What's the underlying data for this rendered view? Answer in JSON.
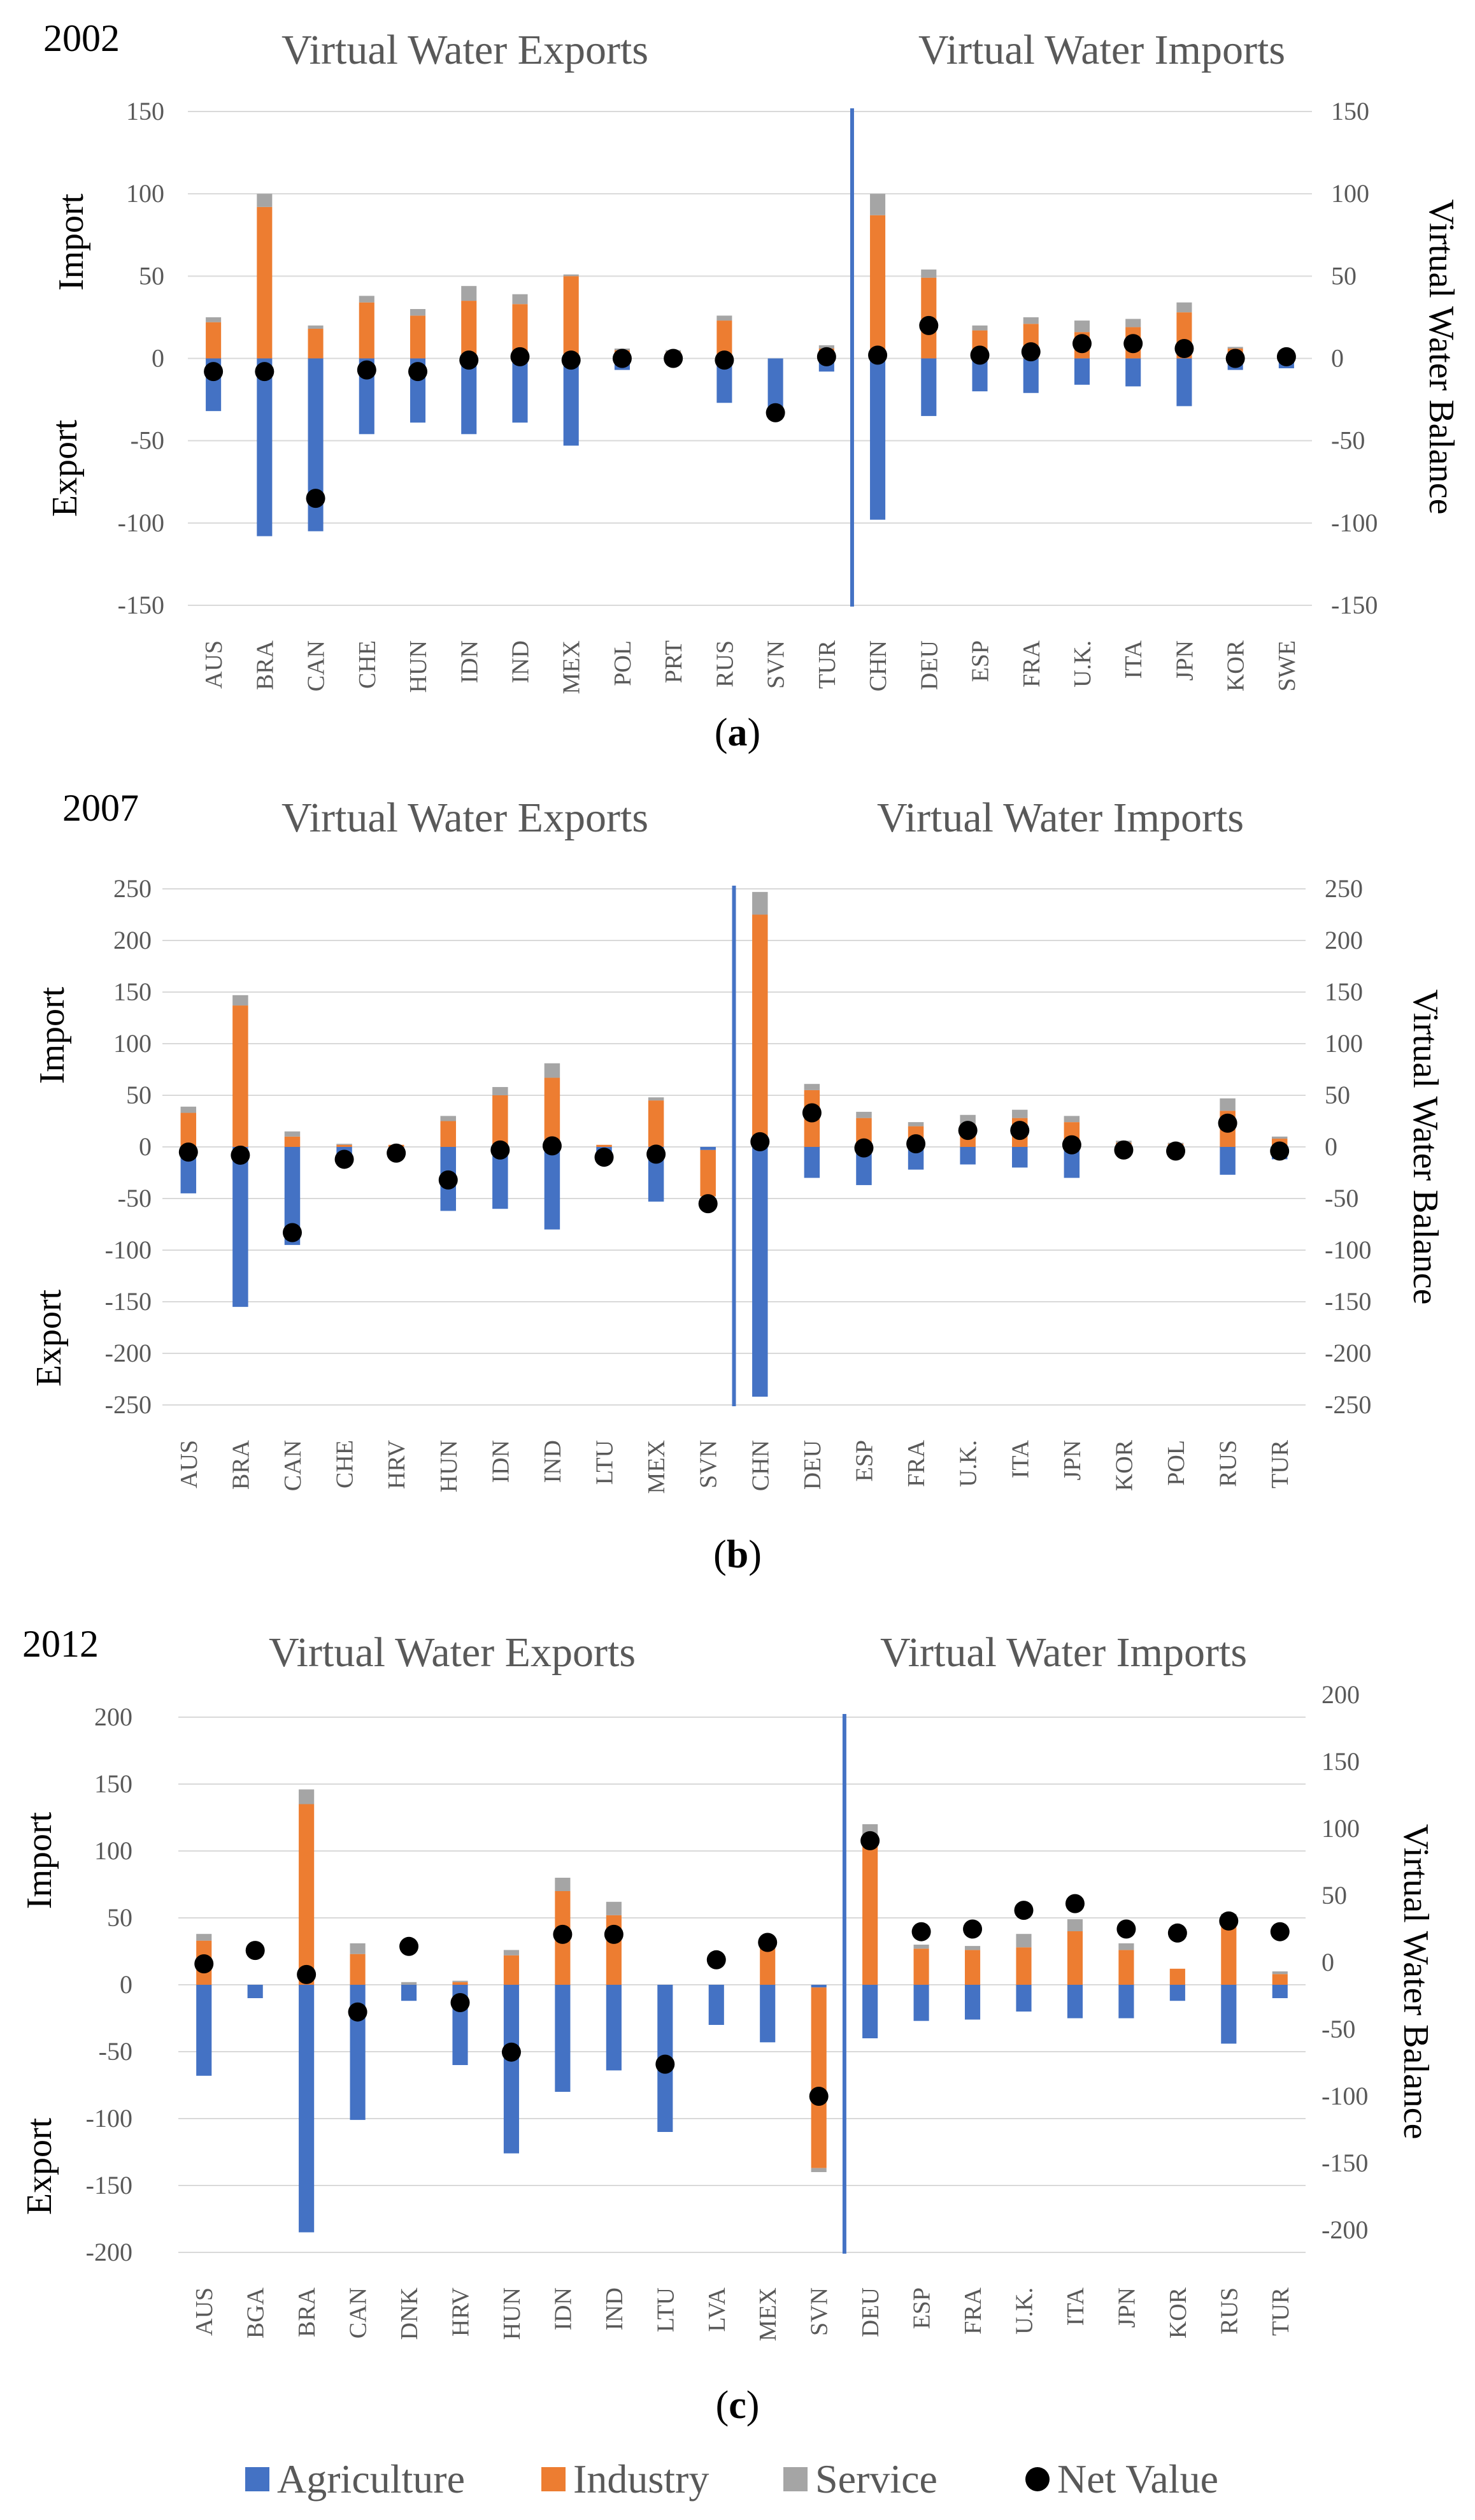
{
  "legend": {
    "agriculture": "Agriculture",
    "industry": "Industry",
    "service": "Service",
    "net": "Net Value"
  },
  "colors": {
    "agriculture": "#4472C4",
    "industry": "#ED7D31",
    "service": "#A5A5A5",
    "net": "#000000",
    "divider": "#4472C4",
    "grid": "#D9D9D9"
  },
  "chart_data": [
    {
      "type": "bar",
      "stacked": true,
      "year": "2002",
      "panel_label": "a",
      "title_exports": "Virtual Water Exports",
      "title_imports": "Virtual Water Imports",
      "ylabel_import": "Import",
      "ylabel_export": "Export",
      "y2label": "Virtual Water Balance",
      "ylim": [
        -150,
        150
      ],
      "yticks": [
        150,
        100,
        50,
        0,
        -50,
        -100,
        -150
      ],
      "y2lim": [
        -150,
        150
      ],
      "y2ticks": [
        150,
        100,
        50,
        0,
        -50,
        -100,
        -150
      ],
      "split_after": 13,
      "categories": [
        "AUS",
        "BRA",
        "CAN",
        "CHE",
        "HUN",
        "IDN",
        "IND",
        "MEX",
        "POL",
        "PRT",
        "RUS",
        "SVN",
        "TUR",
        "CHN",
        "DEU",
        "ESP",
        "FRA",
        "U.K.",
        "ITA",
        "JPN",
        "KOR",
        "SWE"
      ],
      "series": [
        {
          "name": "Agriculture",
          "values": [
            -32,
            -108,
            -105,
            -46,
            -39,
            -46,
            -39,
            -53,
            -7,
            0,
            -27,
            -30,
            -8,
            -98,
            -35,
            -20,
            -21,
            -16,
            -17,
            -29,
            -7,
            -6
          ]
        },
        {
          "name": "Industry",
          "values": [
            22,
            92,
            18,
            34,
            26,
            35,
            33,
            50,
            5,
            4,
            23,
            -4,
            6,
            87,
            49,
            17,
            21,
            16,
            19,
            28,
            6,
            4
          ]
        },
        {
          "name": "Service",
          "values": [
            3,
            8,
            2,
            4,
            4,
            9,
            6,
            1,
            1,
            1,
            3,
            0,
            2,
            13,
            5,
            3,
            4,
            7,
            5,
            6,
            1,
            1
          ]
        }
      ],
      "net_values": [
        -8,
        -8,
        -85,
        -7,
        -8,
        -1,
        1,
        -1,
        0,
        0,
        -1,
        -33,
        1,
        2,
        20,
        2,
        4,
        9,
        9,
        6,
        0,
        1
      ]
    },
    {
      "type": "bar",
      "stacked": true,
      "year": "2007",
      "panel_label": "b",
      "title_exports": "Virtual Water Exports",
      "title_imports": "Virtual Water Imports",
      "ylabel_import": "Import",
      "ylabel_export": "Export",
      "y2label": "Virtual Water Balance",
      "ylim": [
        -250,
        250
      ],
      "yticks": [
        250,
        200,
        150,
        100,
        50,
        0,
        -50,
        -100,
        -150,
        -200,
        -250
      ],
      "y2lim": [
        -250,
        250
      ],
      "y2ticks": [
        250,
        200,
        150,
        100,
        50,
        0,
        -50,
        -100,
        -150,
        -200,
        -250
      ],
      "split_after": 11,
      "categories": [
        "AUS",
        "BRA",
        "CAN",
        "CHE",
        "HRV",
        "HUN",
        "IDN",
        "IND",
        "LTU",
        "MEX",
        "SVN",
        "CHN",
        "DEU",
        "ESP",
        "FRA",
        "U.K.",
        "ITA",
        "JPN",
        "KOR",
        "POL",
        "RUS",
        "TUR"
      ],
      "series": [
        {
          "name": "Agriculture",
          "values": [
            -45,
            -155,
            -95,
            -10,
            -3,
            -62,
            -60,
            -80,
            -5,
            -53,
            -3,
            -242,
            -30,
            -37,
            -22,
            -17,
            -20,
            -30,
            -7,
            -5,
            -27,
            -12
          ]
        },
        {
          "name": "Industry",
          "values": [
            33,
            137,
            10,
            2,
            2,
            25,
            50,
            67,
            2,
            45,
            -45,
            225,
            55,
            28,
            20,
            22,
            28,
            24,
            4,
            3,
            35,
            8
          ]
        },
        {
          "name": "Service",
          "values": [
            6,
            10,
            5,
            1,
            0,
            5,
            8,
            14,
            0,
            3,
            0,
            22,
            6,
            6,
            4,
            9,
            8,
            6,
            2,
            1,
            12,
            2
          ]
        }
      ],
      "net_values": [
        -5,
        -8,
        -83,
        -12,
        -6,
        -32,
        -3,
        1,
        -10,
        -7,
        -55,
        5,
        33,
        -1,
        3,
        16,
        16,
        2,
        -3,
        -4,
        23,
        -4
      ]
    },
    {
      "type": "bar",
      "stacked": true,
      "year": "2012",
      "panel_label": "c",
      "title_exports": "Virtual Water Exports",
      "title_imports": "Virtual Water Imports",
      "ylabel_import": "Import",
      "ylabel_export": "Export",
      "y2label": "Virtual Water Balance",
      "ylim": [
        -200,
        200
      ],
      "yticks": [
        200,
        150,
        100,
        50,
        0,
        -50,
        -100,
        -150,
        -200
      ],
      "y2lim": [
        -200,
        200
      ],
      "y2ticks": [
        200,
        150,
        100,
        50,
        0,
        -50,
        -100,
        -150,
        -200
      ],
      "split_after": 13,
      "categories": [
        "AUS",
        "BGA",
        "BRA",
        "CAN",
        "DNK",
        "HRV",
        "HUN",
        "IDN",
        "IND",
        "LTU",
        "LVA",
        "MEX",
        "SVN",
        "DEU",
        "ESP",
        "FRA",
        "U.K.",
        "ITA",
        "JPN",
        "KOR",
        "RUS",
        "TUR"
      ],
      "series": [
        {
          "name": "Agriculture",
          "values": [
            -68,
            -10,
            -185,
            -101,
            -12,
            -60,
            -126,
            -80,
            -64,
            -110,
            -30,
            -43,
            -2,
            -40,
            -27,
            -26,
            -20,
            -25,
            -25,
            -12,
            -44,
            -10
          ]
        },
        {
          "name": "Industry",
          "values": [
            33,
            0,
            135,
            23,
            0,
            2,
            22,
            70,
            52,
            0,
            0,
            35,
            -135,
            110,
            27,
            26,
            28,
            40,
            26,
            12,
            44,
            8
          ]
        },
        {
          "name": "Service",
          "values": [
            5,
            0,
            11,
            8,
            2,
            1,
            4,
            10,
            10,
            0,
            0,
            0,
            -3,
            10,
            3,
            3,
            10,
            9,
            5,
            0,
            9,
            2
          ]
        }
      ],
      "net_values": [
        -1,
        9,
        -9,
        -37,
        12,
        -30,
        -67,
        21,
        21,
        -76,
        2,
        15,
        -100,
        91,
        23,
        25,
        39,
        44,
        25,
        22,
        31,
        23
      ]
    }
  ]
}
